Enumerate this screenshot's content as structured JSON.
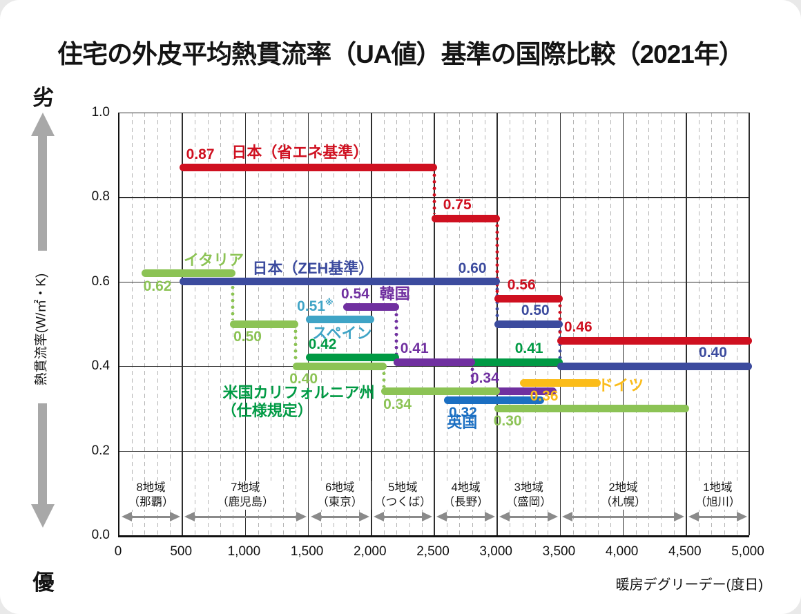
{
  "title": "住宅の外皮平均熱貫流率（UA値）基準の国際比較（2021年）",
  "axes": {
    "y_axis_label": "熱貫流率(W/㎡・K)",
    "x_axis_label": "暖房デグリーデー(度日)",
    "worse_label": "劣",
    "better_label": "優",
    "y_ticks": [
      "1.0",
      "0.8",
      "0.6",
      "0.4",
      "0.2",
      "0.0"
    ],
    "x_ticks": [
      "0",
      "500",
      "1,000",
      "1,500",
      "2,000",
      "2,500",
      "3,000",
      "3,500",
      "4,000",
      "4,500",
      "5,000"
    ]
  },
  "colors": {
    "japan_shoene": "#cf1020",
    "japan_zeh": "#3c4b9e",
    "italy": "#8cc355",
    "california": "#009a44",
    "korea": "#7030a0",
    "spain": "#3fa4c6",
    "uk": "#1b6fc2",
    "germany": "#fbbc19",
    "region_arrow": "#8a8a8a",
    "side_arrow": "#a8a8a8"
  },
  "chart_data": {
    "type": "line",
    "subtype": "stepped-horizontal-segments",
    "title": "住宅の外皮平均熱貫流率（UA値）基準の国際比較（2021年）",
    "xlabel": "暖房デグリーデー(度日)",
    "ylabel": "熱貫流率(W/㎡・K)",
    "xlim": [
      0,
      5000
    ],
    "ylim": [
      0.0,
      1.0
    ],
    "x_major_step": 500,
    "x_minor_step": 100,
    "y_major_step": 0.2,
    "series": [
      {
        "key": "california",
        "name": "米国カリフォルニア州（仕様規定）",
        "segments": [
          {
            "x1": 1500,
            "x2": 2200,
            "v": 0.42
          },
          {
            "x1": 2200,
            "x2": 3500,
            "v": 0.41
          }
        ],
        "connectors": []
      },
      {
        "key": "korea",
        "name": "韓国",
        "segments": [
          {
            "x1": 1800,
            "x2": 2200,
            "v": 0.54
          },
          {
            "x1": 2200,
            "x2": 2800,
            "v": 0.41
          },
          {
            "x1": 2800,
            "x2": 3450,
            "v": 0.34
          }
        ],
        "connectors": [
          {
            "x": 2200,
            "lo": 0.41,
            "hi": 0.54
          },
          {
            "x": 2800,
            "lo": 0.34,
            "hi": 0.41
          }
        ]
      },
      {
        "key": "italy",
        "name": "イタリア",
        "segments": [
          {
            "x1": 200,
            "x2": 900,
            "v": 0.62
          },
          {
            "x1": 900,
            "x2": 1400,
            "v": 0.5
          },
          {
            "x1": 1400,
            "x2": 2100,
            "v": 0.4
          },
          {
            "x1": 2100,
            "x2": 3000,
            "v": 0.34
          },
          {
            "x1": 3000,
            "x2": 4500,
            "v": 0.3
          }
        ],
        "connectors": [
          {
            "x": 900,
            "lo": 0.5,
            "hi": 0.62
          },
          {
            "x": 1400,
            "lo": 0.4,
            "hi": 0.5
          },
          {
            "x": 2100,
            "lo": 0.34,
            "hi": 0.4
          },
          {
            "x": 3000,
            "lo": 0.3,
            "hi": 0.34
          }
        ]
      },
      {
        "key": "spain",
        "name": "スペイン",
        "segments": [
          {
            "x1": 1500,
            "x2": 2000,
            "v": 0.51
          }
        ],
        "connectors": []
      },
      {
        "key": "uk",
        "name": "英国",
        "segments": [
          {
            "x1": 2600,
            "x2": 3350,
            "v": 0.32
          }
        ],
        "connectors": []
      },
      {
        "key": "germany",
        "name": "ドイツ",
        "segments": [
          {
            "x1": 3200,
            "x2": 3800,
            "v": 0.36
          }
        ],
        "connectors": []
      },
      {
        "key": "japan_zeh",
        "name": "日本（ZEH基準）",
        "segments": [
          {
            "x1": 500,
            "x2": 3000,
            "v": 0.6
          },
          {
            "x1": 3000,
            "x2": 3500,
            "v": 0.5
          },
          {
            "x1": 3500,
            "x2": 5000,
            "v": 0.4
          }
        ],
        "connectors": [
          {
            "x": 3000,
            "lo": 0.5,
            "hi": 0.6
          },
          {
            "x": 3500,
            "lo": 0.4,
            "hi": 0.5
          }
        ]
      },
      {
        "key": "japan_shoene",
        "name": "日本（省エネ基準）",
        "segments": [
          {
            "x1": 500,
            "x2": 2500,
            "v": 0.87
          },
          {
            "x1": 2500,
            "x2": 3000,
            "v": 0.75
          },
          {
            "x1": 3000,
            "x2": 3500,
            "v": 0.56
          },
          {
            "x1": 3500,
            "x2": 5000,
            "v": 0.46
          }
        ],
        "connectors": [
          {
            "x": 2500,
            "lo": 0.75,
            "hi": 0.87
          },
          {
            "x": 3000,
            "lo": 0.56,
            "hi": 0.75
          },
          {
            "x": 3500,
            "lo": 0.46,
            "hi": 0.56
          }
        ]
      }
    ],
    "labels": [
      {
        "text": "0.87",
        "series": "japan_shoene",
        "x": 530,
        "v": 0.87,
        "place": "above"
      },
      {
        "text": "日本（省エネ基準）",
        "series": "japan_shoene",
        "x": 890,
        "v": 0.87,
        "place": "above",
        "kind": "series",
        "dy": -3
      },
      {
        "text": "0.75",
        "series": "japan_shoene",
        "x": 2570,
        "v": 0.75,
        "place": "above"
      },
      {
        "text": "0.56",
        "series": "japan_shoene",
        "x": 3080,
        "v": 0.56,
        "place": "above"
      },
      {
        "text": "0.46",
        "series": "japan_shoene",
        "x": 3530,
        "v": 0.46,
        "place": "above"
      },
      {
        "text": "0.60",
        "series": "japan_zeh",
        "x": 2690,
        "v": 0.6,
        "place": "above"
      },
      {
        "text": "日本（ZEH基準）",
        "series": "japan_zeh",
        "x": 1055,
        "v": 0.6,
        "place": "above",
        "kind": "series"
      },
      {
        "text": "0.50",
        "series": "japan_zeh",
        "x": 3190,
        "v": 0.5,
        "place": "above"
      },
      {
        "text": "0.40",
        "series": "japan_zeh",
        "x": 4600,
        "v": 0.4,
        "place": "above"
      },
      {
        "text": "0.62",
        "series": "italy",
        "x": 190,
        "v": 0.62,
        "place": "below"
      },
      {
        "text": "イタリア",
        "series": "italy",
        "x": 510,
        "v": 0.62,
        "place": "above",
        "kind": "series"
      },
      {
        "text": "0.50",
        "series": "italy",
        "x": 905,
        "v": 0.5,
        "place": "below"
      },
      {
        "text": "0.40",
        "series": "italy",
        "x": 1350,
        "v": 0.4,
        "place": "below"
      },
      {
        "text": "0.34",
        "series": "italy",
        "x": 2095,
        "v": 0.34,
        "place": "below"
      },
      {
        "text": "0.30",
        "series": "italy",
        "x": 2970,
        "v": 0.3,
        "place": "below"
      },
      {
        "text": "0.42",
        "series": "california",
        "x": 1500,
        "v": 0.42,
        "place": "above"
      },
      {
        "text": "0.41",
        "series": "california",
        "x": 3140,
        "v": 0.41,
        "place": "above"
      },
      {
        "text": "米国カリフォルニア州",
        "series": "california",
        "x": 820,
        "v": 0.356,
        "place": "free",
        "kind": "series"
      },
      {
        "text": "（仕様規定）",
        "series": "california",
        "x": 810,
        "v": 0.314,
        "place": "free",
        "kind": "series"
      },
      {
        "text": "0.54",
        "series": "korea",
        "x": 1760,
        "v": 0.54,
        "place": "above"
      },
      {
        "text": "韓国",
        "series": "korea",
        "x": 2065,
        "v": 0.54,
        "place": "above",
        "kind": "series"
      },
      {
        "text": "0.41",
        "series": "korea",
        "x": 2230,
        "v": 0.41,
        "place": "above"
      },
      {
        "text": "0.34",
        "series": "korea",
        "x": 2790,
        "v": 0.34,
        "place": "above"
      },
      {
        "text": "0.51",
        "sup": "※",
        "series": "spain",
        "x": 1410,
        "v": 0.51,
        "place": "above"
      },
      {
        "text": "スペイン",
        "series": "spain",
        "x": 1530,
        "v": 0.51,
        "place": "below",
        "kind": "series"
      },
      {
        "text": "0.32",
        "series": "uk",
        "x": 2615,
        "v": 0.32,
        "place": "below"
      },
      {
        "text": "英国",
        "series": "uk",
        "x": 2600,
        "v": 0.286,
        "place": "free",
        "kind": "series"
      },
      {
        "text": "0.36",
        "series": "germany",
        "x": 3260,
        "v": 0.36,
        "place": "below"
      },
      {
        "text": "ドイツ",
        "series": "germany",
        "x": 3800,
        "v": 0.36,
        "place": "mid",
        "kind": "series",
        "dy": 3
      }
    ],
    "regions": [
      {
        "line1": "8地域",
        "line2": "（那覇）",
        "x1": 0,
        "x2": 500
      },
      {
        "line1": "7地域",
        "line2": "（鹿児島）",
        "x1": 500,
        "x2": 1500
      },
      {
        "line1": "6地域",
        "line2": "（東京）",
        "x1": 1500,
        "x2": 2000
      },
      {
        "line1": "5地域",
        "line2": "（つくば）",
        "x1": 2000,
        "x2": 2500
      },
      {
        "line1": "4地域",
        "line2": "（長野）",
        "x1": 2500,
        "x2": 3000
      },
      {
        "line1": "3地域",
        "line2": "（盛岡）",
        "x1": 3000,
        "x2": 3500
      },
      {
        "line1": "2地域",
        "line2": "（札幌）",
        "x1": 3500,
        "x2": 4500
      },
      {
        "line1": "1地域",
        "line2": "（旭川）",
        "x1": 4500,
        "x2": 5000
      }
    ]
  }
}
